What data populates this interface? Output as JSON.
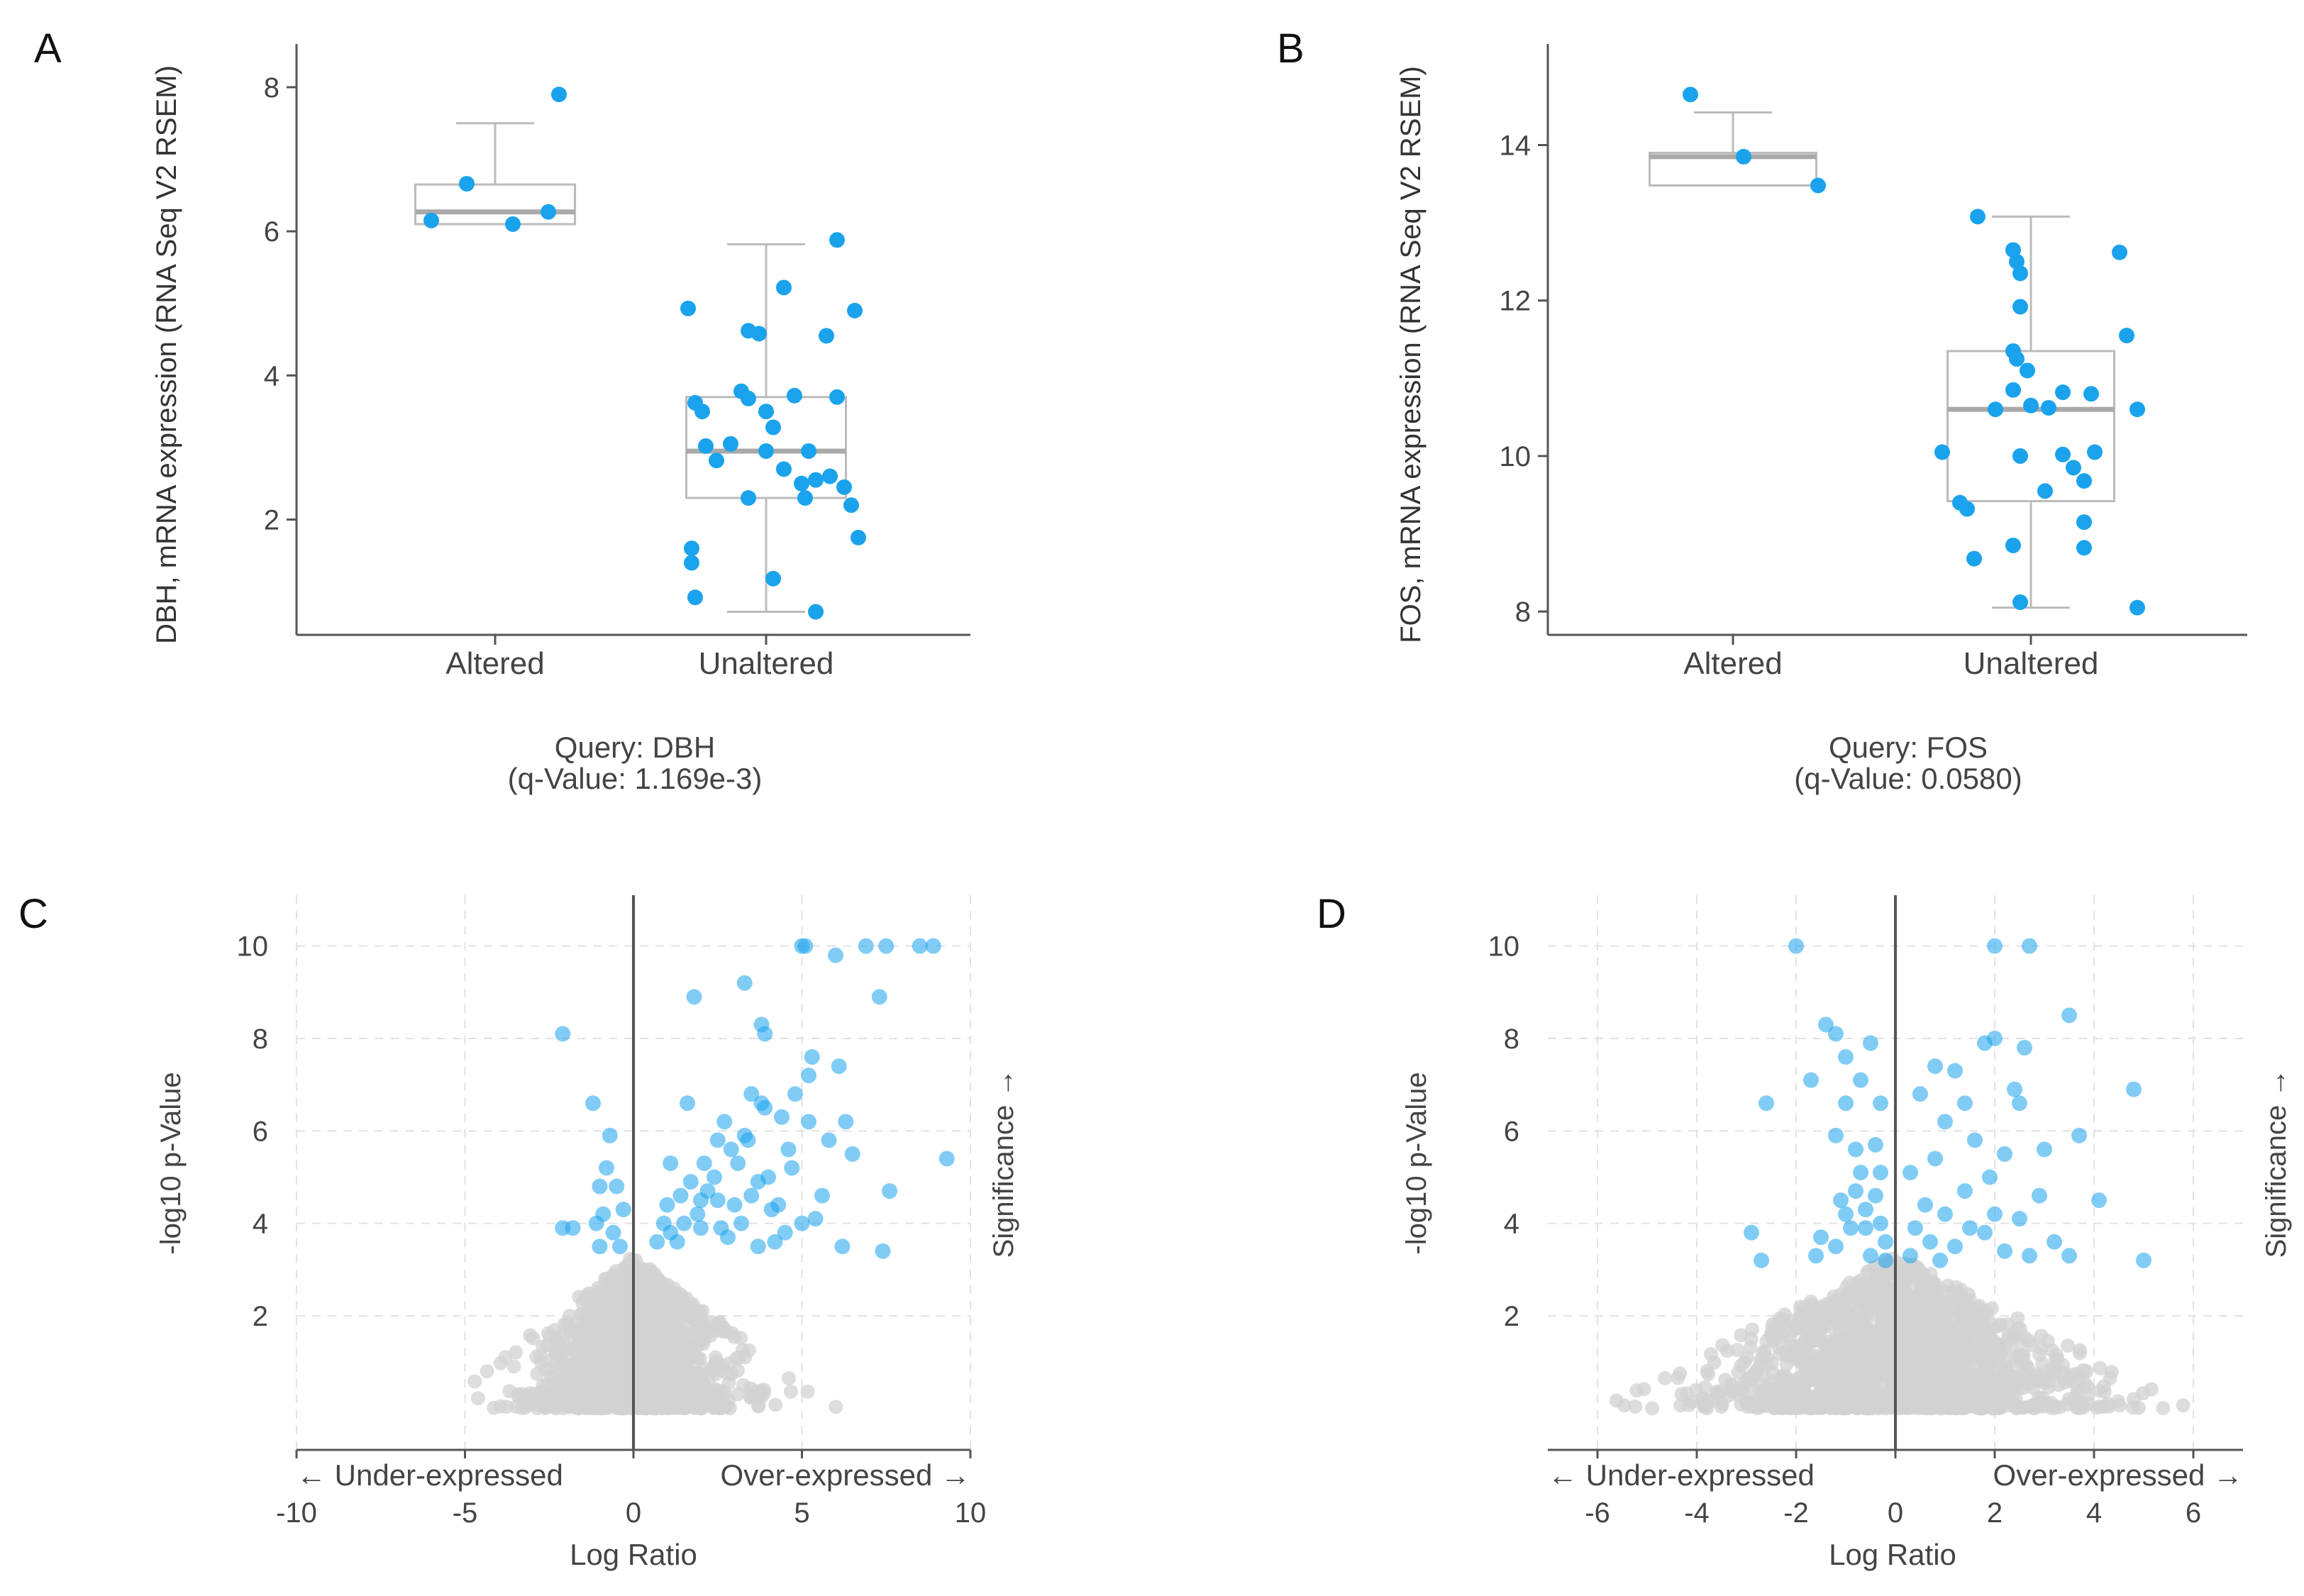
{
  "figure": {
    "panels": [
      {
        "label": "A",
        "plot": "DBH box plot"
      },
      {
        "label": "B",
        "plot": "FOS box plot"
      },
      {
        "label": "C",
        "plot": "DBH volcano plot"
      },
      {
        "label": "D",
        "plot": "FOS volcano plot"
      }
    ]
  },
  "colors": {
    "point": "#1aa3ec",
    "point_light": "#8ccdf2",
    "background_point": "#d2d2d2",
    "axis": "#555555",
    "box": "#bbbbbb",
    "median": "#a9a9a9",
    "grid": "#e2e2e2",
    "text": "#333333"
  },
  "chart_data": [
    {
      "id": "A",
      "type": "scatter",
      "subtype": "box-strip",
      "title": "",
      "xlabel": "",
      "ylabel": "DBH, mRNA expression (RNA Seq V2 RSEM)",
      "categories": [
        "Altered",
        "Unaltered"
      ],
      "ylim": [
        0.4,
        8.6
      ],
      "yticks": [
        2,
        4,
        6,
        8
      ],
      "caption_lines": [
        "Query: DBH",
        "(q-Value: 1.169e-3)"
      ],
      "boxes": [
        {
          "category": "Altered",
          "whisker_low": 6.1,
          "q1": 6.1,
          "median": 6.27,
          "q3": 6.65,
          "whisker_high": 7.5
        },
        {
          "category": "Unaltered",
          "whisker_low": 0.72,
          "q1": 2.3,
          "median": 2.95,
          "q3": 3.7,
          "whisker_high": 5.82
        }
      ],
      "series": [
        {
          "name": "Altered",
          "points": [
            [
              -0.18,
              6.15
            ],
            [
              -0.08,
              6.66
            ],
            [
              0.05,
              6.1
            ],
            [
              0.15,
              6.27
            ],
            [
              0.18,
              7.9
            ]
          ]
        },
        {
          "name": "Unaltered",
          "points": [
            [
              -0.22,
              4.93
            ],
            [
              -0.05,
              4.62
            ],
            [
              -0.02,
              4.58
            ],
            [
              0.05,
              5.22
            ],
            [
              0.2,
              5.88
            ],
            [
              0.17,
              4.55
            ],
            [
              0.25,
              4.9
            ],
            [
              -0.18,
              3.5
            ],
            [
              -0.2,
              3.62
            ],
            [
              -0.05,
              3.68
            ],
            [
              -0.07,
              3.78
            ],
            [
              0.08,
              3.72
            ],
            [
              0.2,
              3.7
            ],
            [
              0.0,
              3.5
            ],
            [
              0.02,
              3.28
            ],
            [
              -0.1,
              3.05
            ],
            [
              -0.17,
              3.02
            ],
            [
              0.0,
              2.95
            ],
            [
              0.05,
              2.7
            ],
            [
              0.12,
              2.95
            ],
            [
              0.18,
              2.6
            ],
            [
              -0.14,
              2.82
            ],
            [
              0.1,
              2.5
            ],
            [
              0.14,
              2.55
            ],
            [
              0.22,
              2.45
            ],
            [
              -0.05,
              2.3
            ],
            [
              0.11,
              2.3
            ],
            [
              0.24,
              2.2
            ],
            [
              0.26,
              1.75
            ],
            [
              -0.21,
              1.6
            ],
            [
              -0.21,
              1.4
            ],
            [
              0.02,
              1.18
            ],
            [
              -0.2,
              0.92
            ],
            [
              0.14,
              0.72
            ]
          ]
        }
      ]
    },
    {
      "id": "B",
      "type": "scatter",
      "subtype": "box-strip",
      "title": "",
      "xlabel": "",
      "ylabel": "FOS, mRNA expression (RNA Seq V2 RSEM)",
      "categories": [
        "Altered",
        "Unaltered"
      ],
      "ylim": [
        7.7,
        15.3
      ],
      "yticks": [
        8,
        10,
        12,
        14
      ],
      "caption_lines": [
        "Query: FOS",
        "(q-Value: 0.0580)"
      ],
      "boxes": [
        {
          "category": "Altered",
          "whisker_low": 13.48,
          "q1": 13.48,
          "median": 13.85,
          "q3": 13.9,
          "whisker_high": 14.42
        },
        {
          "category": "Unaltered",
          "whisker_low": 8.05,
          "q1": 9.42,
          "median": 10.6,
          "q3": 11.35,
          "whisker_high": 13.08
        }
      ],
      "series": [
        {
          "name": "Altered",
          "points": [
            [
              -0.12,
              14.65
            ],
            [
              0.03,
              13.85
            ],
            [
              0.24,
              13.48
            ]
          ]
        },
        {
          "name": "Unaltered",
          "points": [
            [
              -0.15,
              13.08
            ],
            [
              -0.05,
              12.65
            ],
            [
              -0.04,
              12.5
            ],
            [
              -0.03,
              12.35
            ],
            [
              0.25,
              12.62
            ],
            [
              0.27,
              11.55
            ],
            [
              -0.03,
              11.92
            ],
            [
              -0.05,
              11.35
            ],
            [
              -0.04,
              11.25
            ],
            [
              -0.01,
              11.1
            ],
            [
              0.0,
              10.65
            ],
            [
              -0.05,
              10.85
            ],
            [
              0.09,
              10.82
            ],
            [
              0.17,
              10.8
            ],
            [
              0.3,
              10.6
            ],
            [
              0.05,
              10.62
            ],
            [
              -0.1,
              10.6
            ],
            [
              -0.25,
              10.05
            ],
            [
              -0.03,
              10.0
            ],
            [
              0.09,
              10.02
            ],
            [
              0.18,
              10.05
            ],
            [
              0.12,
              9.85
            ],
            [
              0.15,
              9.68
            ],
            [
              0.04,
              9.55
            ],
            [
              -0.2,
              9.4
            ],
            [
              -0.18,
              9.32
            ],
            [
              0.15,
              9.15
            ],
            [
              -0.05,
              8.85
            ],
            [
              0.15,
              8.82
            ],
            [
              -0.16,
              8.68
            ],
            [
              -0.03,
              8.12
            ],
            [
              0.3,
              8.05
            ]
          ]
        }
      ]
    },
    {
      "id": "C",
      "type": "scatter",
      "subtype": "volcano",
      "title": "",
      "xlabel": "Log Ratio",
      "ylabel": "-log10 p-Value",
      "xlim": [
        -10,
        10
      ],
      "ylim": [
        -0.9,
        11.1
      ],
      "xticks": [
        -10,
        -5,
        0,
        5,
        10
      ],
      "yticks": [
        2,
        4,
        6,
        8,
        10
      ],
      "under_label": "← Under-expressed",
      "over_label": "Over-expressed →",
      "side_label": "Significance →",
      "significant_points": [
        [
          -2.1,
          8.1
        ],
        [
          -1.2,
          6.6
        ],
        [
          -0.7,
          5.9
        ],
        [
          -0.8,
          5.2
        ],
        [
          -1.0,
          4.8
        ],
        [
          -0.5,
          4.8
        ],
        [
          -0.9,
          4.2
        ],
        [
          -2.1,
          3.9
        ],
        [
          -1.8,
          3.9
        ],
        [
          -1.1,
          4.0
        ],
        [
          -0.6,
          3.8
        ],
        [
          -0.4,
          3.5
        ],
        [
          -1.0,
          3.5
        ],
        [
          -0.3,
          4.3
        ],
        [
          1.8,
          8.9
        ],
        [
          3.3,
          9.2
        ],
        [
          3.8,
          8.3
        ],
        [
          3.9,
          8.1
        ],
        [
          5.0,
          10.0
        ],
        [
          5.1,
          10.0
        ],
        [
          6.9,
          10.0
        ],
        [
          7.5,
          10.0
        ],
        [
          8.5,
          10.0
        ],
        [
          8.9,
          10.0
        ],
        [
          6.0,
          9.8
        ],
        [
          7.3,
          8.9
        ],
        [
          5.3,
          7.6
        ],
        [
          6.1,
          7.4
        ],
        [
          4.4,
          6.3
        ],
        [
          3.8,
          6.6
        ],
        [
          3.5,
          6.8
        ],
        [
          1.6,
          6.6
        ],
        [
          5.2,
          7.2
        ],
        [
          4.8,
          6.8
        ],
        [
          2.7,
          6.2
        ],
        [
          5.2,
          6.2
        ],
        [
          3.3,
          5.9
        ],
        [
          3.4,
          5.8
        ],
        [
          5.8,
          5.8
        ],
        [
          6.5,
          5.5
        ],
        [
          7.6,
          4.7
        ],
        [
          9.3,
          5.4
        ],
        [
          2.1,
          5.3
        ],
        [
          1.1,
          5.3
        ],
        [
          1.4,
          4.6
        ],
        [
          2.9,
          5.6
        ],
        [
          2.5,
          5.8
        ],
        [
          3.1,
          5.3
        ],
        [
          4.0,
          5.0
        ],
        [
          3.7,
          4.9
        ],
        [
          4.7,
          5.2
        ],
        [
          5.6,
          4.6
        ],
        [
          4.3,
          4.4
        ],
        [
          3.0,
          4.4
        ],
        [
          2.5,
          4.5
        ],
        [
          1.9,
          4.2
        ],
        [
          2.2,
          4.7
        ],
        [
          1.5,
          4.0
        ],
        [
          0.9,
          4.0
        ],
        [
          1.1,
          3.8
        ],
        [
          2.6,
          3.9
        ],
        [
          3.2,
          4.0
        ],
        [
          4.5,
          3.8
        ],
        [
          5.0,
          4.0
        ],
        [
          4.2,
          3.6
        ],
        [
          3.7,
          3.5
        ],
        [
          2.0,
          3.9
        ],
        [
          1.3,
          3.6
        ],
        [
          2.8,
          3.7
        ],
        [
          6.2,
          3.5
        ],
        [
          7.4,
          3.4
        ],
        [
          3.5,
          4.6
        ],
        [
          2.0,
          4.5
        ],
        [
          1.7,
          4.9
        ],
        [
          4.1,
          4.3
        ],
        [
          5.4,
          4.1
        ],
        [
          1.0,
          4.4
        ],
        [
          3.9,
          6.5
        ],
        [
          6.3,
          6.2
        ],
        [
          2.4,
          5.0
        ],
        [
          4.6,
          5.6
        ],
        [
          0.7,
          3.6
        ]
      ]
    },
    {
      "id": "D",
      "type": "scatter",
      "subtype": "volcano",
      "title": "",
      "xlabel": "Log Ratio",
      "ylabel": "-log10 p-Value",
      "xlim": [
        -7,
        7
      ],
      "ylim": [
        -0.9,
        11.1
      ],
      "xticks": [
        -6,
        -4,
        -2,
        0,
        2,
        4,
        6
      ],
      "yticks": [
        2,
        4,
        6,
        8,
        10
      ],
      "under_label": "← Under-expressed",
      "over_label": "Over-expressed →",
      "side_label": "Significance →",
      "significant_points": [
        [
          -2.0,
          10.0
        ],
        [
          -1.4,
          8.3
        ],
        [
          -1.2,
          8.1
        ],
        [
          -1.0,
          7.6
        ],
        [
          -0.5,
          7.9
        ],
        [
          -1.7,
          7.1
        ],
        [
          -1.0,
          6.6
        ],
        [
          -0.7,
          7.1
        ],
        [
          -0.3,
          6.6
        ],
        [
          -2.6,
          6.6
        ],
        [
          -1.2,
          5.9
        ],
        [
          -0.4,
          5.7
        ],
        [
          -0.8,
          5.6
        ],
        [
          -0.3,
          5.1
        ],
        [
          -0.8,
          4.7
        ],
        [
          -1.1,
          4.5
        ],
        [
          -0.6,
          4.3
        ],
        [
          -0.3,
          4.0
        ],
        [
          -0.9,
          3.9
        ],
        [
          -1.5,
          3.7
        ],
        [
          -1.2,
          3.5
        ],
        [
          -2.9,
          3.8
        ],
        [
          -2.7,
          3.2
        ],
        [
          -0.5,
          3.3
        ],
        [
          -0.2,
          3.6
        ],
        [
          -0.6,
          3.9
        ],
        [
          -1.0,
          4.2
        ],
        [
          -0.4,
          4.6
        ],
        [
          -0.7,
          5.1
        ],
        [
          -0.2,
          3.2
        ],
        [
          -1.6,
          3.3
        ],
        [
          2.0,
          10.0
        ],
        [
          2.7,
          10.0
        ],
        [
          0.8,
          7.4
        ],
        [
          1.2,
          7.3
        ],
        [
          1.8,
          7.9
        ],
        [
          2.0,
          8.0
        ],
        [
          2.6,
          7.8
        ],
        [
          3.5,
          8.5
        ],
        [
          4.8,
          6.9
        ],
        [
          1.4,
          6.6
        ],
        [
          2.4,
          6.9
        ],
        [
          0.5,
          6.8
        ],
        [
          2.5,
          6.6
        ],
        [
          3.7,
          5.9
        ],
        [
          1.0,
          6.2
        ],
        [
          3.0,
          5.6
        ],
        [
          2.2,
          5.5
        ],
        [
          0.8,
          5.4
        ],
        [
          1.9,
          5.0
        ],
        [
          2.9,
          4.6
        ],
        [
          4.1,
          4.5
        ],
        [
          1.4,
          4.7
        ],
        [
          0.6,
          4.4
        ],
        [
          1.0,
          4.2
        ],
        [
          2.5,
          4.1
        ],
        [
          0.4,
          3.9
        ],
        [
          1.8,
          3.8
        ],
        [
          0.7,
          3.6
        ],
        [
          1.2,
          3.5
        ],
        [
          2.2,
          3.4
        ],
        [
          2.7,
          3.3
        ],
        [
          0.3,
          3.3
        ],
        [
          3.5,
          3.3
        ],
        [
          5.0,
          3.2
        ],
        [
          1.5,
          3.9
        ],
        [
          0.9,
          3.2
        ],
        [
          2.0,
          4.2
        ],
        [
          3.2,
          3.6
        ],
        [
          1.6,
          5.8
        ],
        [
          0.3,
          5.1
        ]
      ]
    }
  ]
}
